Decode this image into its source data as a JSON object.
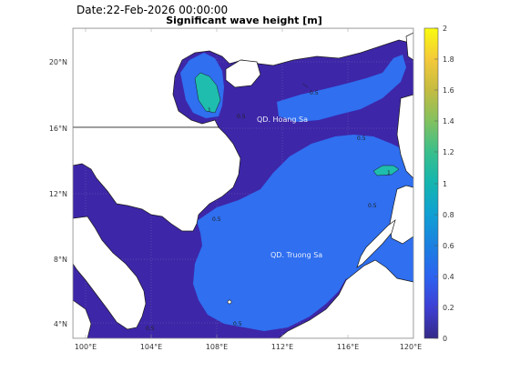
{
  "header": {
    "date": "Date:22-Feb-2026 00:00:00",
    "title": "Significant wave height [m]"
  },
  "axes": {
    "lat_ticks": [
      "4°N",
      "8°N",
      "12°N",
      "16°N",
      "20°N"
    ],
    "lon_ticks": [
      "100°E",
      "104°E",
      "108°E",
      "112°E",
      "116°E",
      "120°E"
    ]
  },
  "place_labels": {
    "paracel": "QD. Hoang Sa",
    "spratly": "QD. Truong Sa"
  },
  "contour_labels": {
    "c05": "0.5",
    "c1": "1"
  },
  "colorbar": {
    "ticks": [
      "0",
      "0.2",
      "0.4",
      "0.6",
      "0.8",
      "1",
      "1.2",
      "1.4",
      "1.6",
      "1.8",
      "2"
    ],
    "colormap": "parula",
    "min": 0,
    "max": 2
  },
  "colors": {
    "land": "#ffffff",
    "wave_low": "#3e26a8",
    "wave_mid": "#2f6ff0",
    "wave_high": "#1fbdad",
    "coast": "#1a1a1a"
  }
}
